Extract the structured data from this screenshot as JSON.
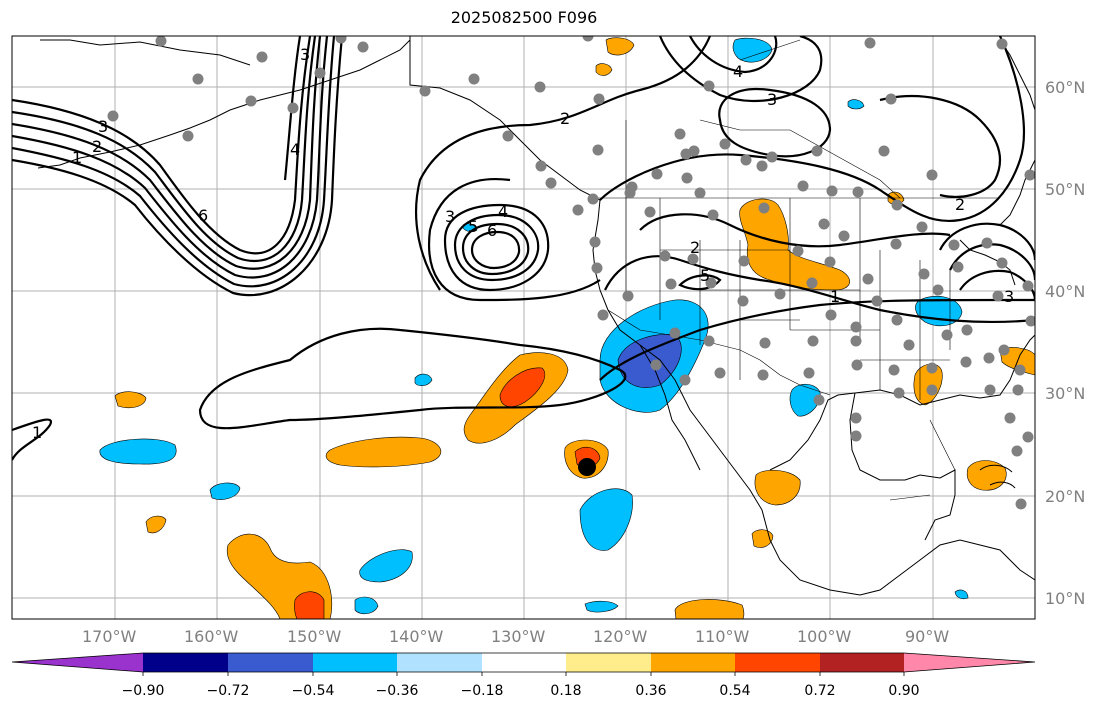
{
  "title": "2025082500 F096",
  "lat_labels": [
    "60°N",
    "50°N",
    "40°N",
    "30°N",
    "20°N",
    "10°N"
  ],
  "lon_labels": [
    "170°W",
    "160°W",
    "150°W",
    "140°W",
    "130°W",
    "120°W",
    "110°W",
    "100°W",
    "90°W"
  ],
  "contour_labels": [
    "3",
    "1",
    "2",
    "6",
    "4",
    "3",
    "4",
    "5",
    "6",
    "2",
    "3",
    "4",
    "3",
    "2",
    "5",
    "1",
    "3",
    "1",
    "2"
  ],
  "colorbar": {
    "ticks": [
      "−0.90",
      "−0.72",
      "−0.54",
      "−0.36",
      "−0.18",
      "0.18",
      "0.36",
      "0.54",
      "0.72",
      "0.90"
    ],
    "colors": [
      "#9a32cd",
      "#00008b",
      "#3a5bd0",
      "#00bfff",
      "#b0e2ff",
      "#ffffff",
      "#ffec8b",
      "#ffa500",
      "#ff4500",
      "#b22222",
      "#ff88aa"
    ]
  }
}
